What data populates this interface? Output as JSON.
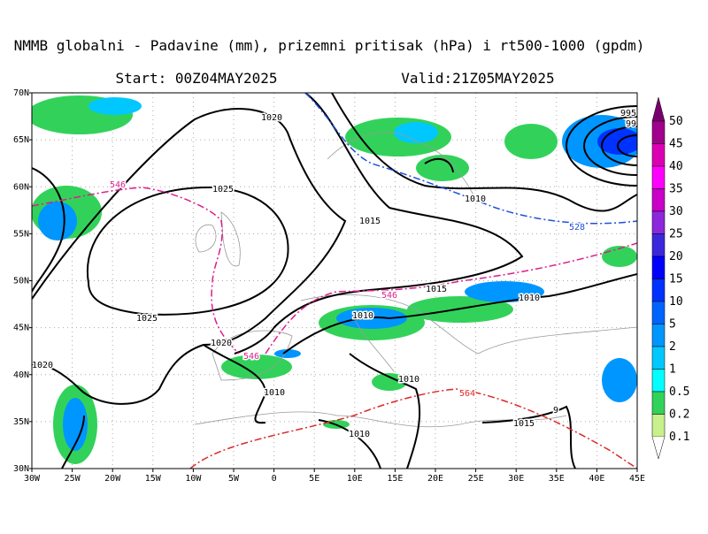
{
  "header": {
    "title": "NMMB globalni - Padavine (mm), prizemni pritisak (hPa) i rt500-1000 (gpdm)",
    "start": "Start: 00Z04MAY2025",
    "valid": "Valid:21Z05MAY2025"
  },
  "map": {
    "lat_labels": [
      "70N",
      "65N",
      "60N",
      "55N",
      "50N",
      "45N",
      "40N",
      "35N",
      "30N"
    ],
    "lon_labels": [
      "30W",
      "25W",
      "20W",
      "15W",
      "10W",
      "5W",
      "0",
      "5E",
      "10E",
      "15E",
      "20E",
      "25E",
      "30E",
      "35E",
      "40E",
      "45E"
    ],
    "contour_labels": [
      "1020",
      "1025",
      "1015",
      "1010",
      "528",
      "546",
      "546",
      "1015",
      "1010",
      "1010",
      "1025",
      "1020",
      "546",
      "1020",
      "1010",
      "1010",
      "564",
      "1015",
      "1010",
      "995",
      "99",
      "9"
    ]
  },
  "colorbar": {
    "labels": [
      "50",
      "45",
      "40",
      "35",
      "30",
      "25",
      "20",
      "15",
      "10",
      "5",
      "2",
      "1",
      "0.5",
      "0.2",
      "0.1"
    ]
  }
}
